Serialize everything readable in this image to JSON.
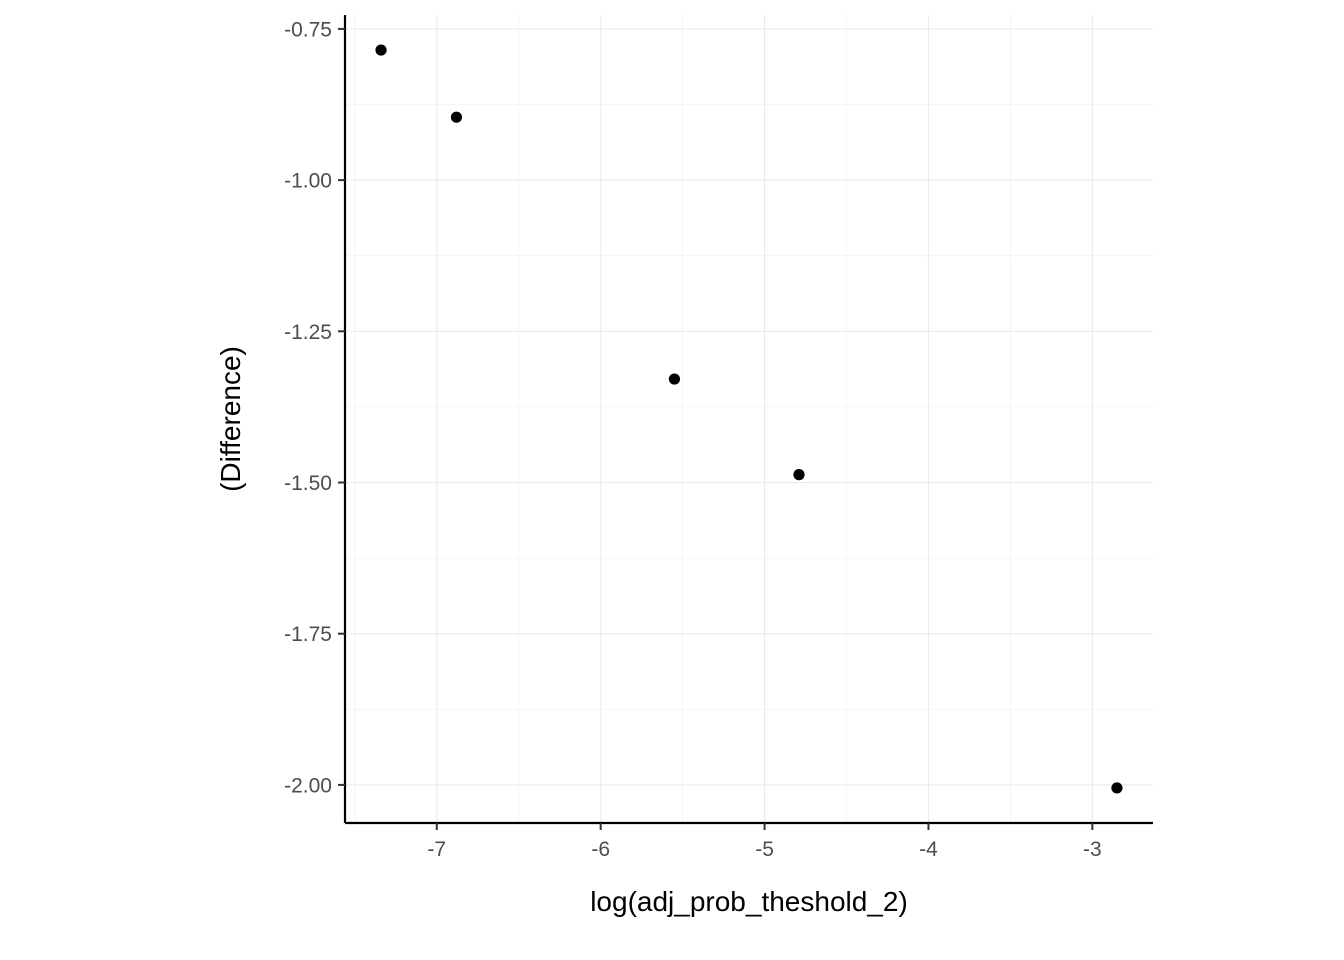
{
  "chart_data": {
    "type": "scatter",
    "title": "",
    "xlabel": "log(adj_prob_theshold_2)",
    "ylabel": "(Difference)",
    "xlim": [
      -7.56,
      -2.63
    ],
    "ylim": [
      -2.063,
      -0.727
    ],
    "x_ticks": [
      -7,
      -6,
      -5,
      -4,
      -3
    ],
    "x_tick_labels": [
      "-7",
      "-6",
      "-5",
      "-4",
      "-3"
    ],
    "y_ticks": [
      -0.75,
      -1.0,
      -1.25,
      -1.5,
      -1.75,
      -2.0
    ],
    "y_tick_labels": [
      "-0.75",
      "-1.00",
      "-1.25",
      "-1.50",
      "-1.75",
      "-2.00"
    ],
    "grid": true,
    "legend": "none",
    "point_color": "#000000",
    "series": [
      {
        "x": [
          -7.34,
          -6.88,
          -5.55,
          -4.79,
          -2.85
        ],
        "y": [
          -0.785,
          -0.896,
          -1.329,
          -1.487,
          -2.005
        ]
      }
    ]
  }
}
